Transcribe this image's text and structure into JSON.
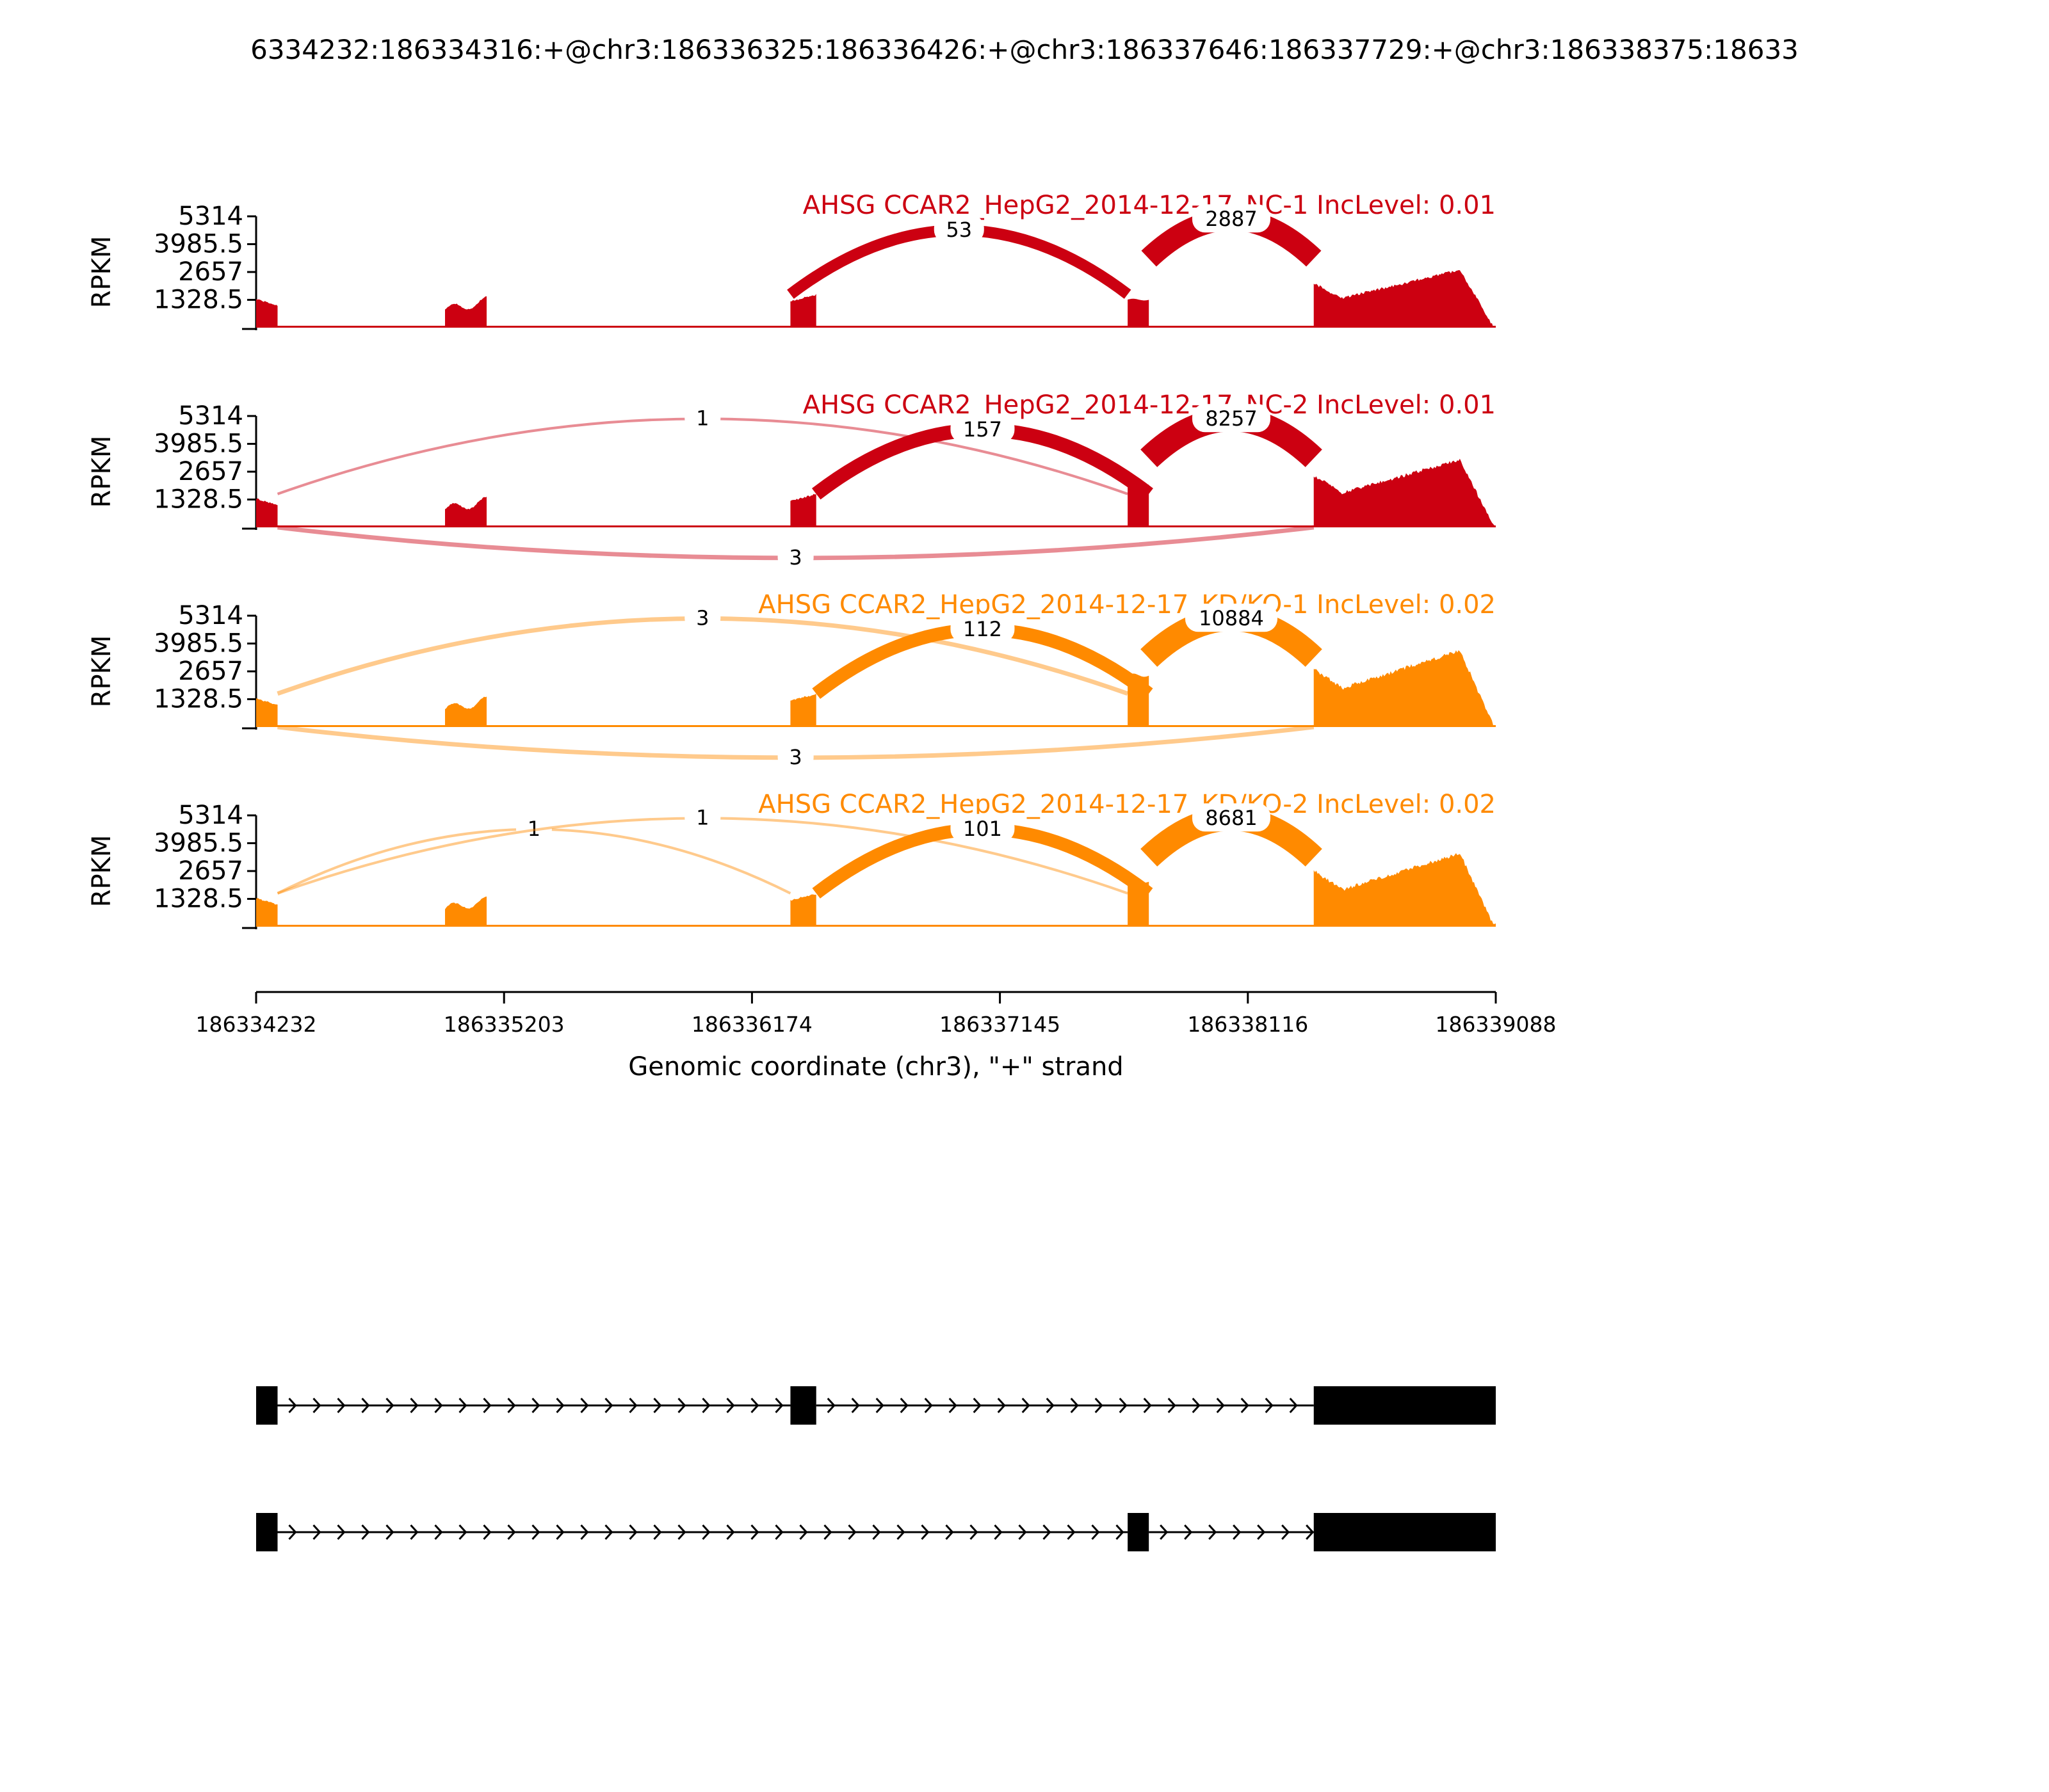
{
  "figure_title": "6334232:186334316:+@chr3:186336325:186336426:+@chr3:186337646:186337729:+@chr3:186338375:18633",
  "colors": {
    "nc": "#cc0011",
    "kd": "#ff8a00",
    "axis": "#000000",
    "gene": "#000000"
  },
  "chart_data": [
    {
      "type": "area",
      "title": "AHSG CCAR2_HepG2_2014-12-17_NC-1 IncLevel: 0.01",
      "color": "#cc0011",
      "ylabel": "RPKM",
      "yticks": [
        1328.5,
        2657,
        3985.5,
        5314
      ],
      "ylim": [
        0,
        5314
      ],
      "junctions": [
        {
          "from": 186336325,
          "to": 186337646,
          "count": "53",
          "side": "above"
        },
        {
          "from": 186337729,
          "to": 186338375,
          "count": "2887",
          "side": "above"
        }
      ]
    },
    {
      "type": "area",
      "title": "AHSG CCAR2_HepG2_2014-12-17_NC-2 IncLevel: 0.01",
      "color": "#cc0011",
      "ylabel": "RPKM",
      "yticks": [
        1328.5,
        2657,
        3985.5,
        5314
      ],
      "ylim": [
        0,
        5314
      ],
      "junctions": [
        {
          "from": 186334316,
          "to": 186337646,
          "count": "1",
          "side": "above"
        },
        {
          "from": 186336426,
          "to": 186337729,
          "count": "157",
          "side": "above"
        },
        {
          "from": 186337729,
          "to": 186338375,
          "count": "8257",
          "side": "above"
        },
        {
          "from": 186334316,
          "to": 186338375,
          "count": "3",
          "side": "below"
        }
      ]
    },
    {
      "type": "area",
      "title": "AHSG CCAR2_HepG2_2014-12-17_KD/KO-1 IncLevel: 0.02",
      "color": "#ff8a00",
      "ylabel": "RPKM",
      "yticks": [
        1328.5,
        2657,
        3985.5,
        5314
      ],
      "ylim": [
        0,
        5314
      ],
      "junctions": [
        {
          "from": 186334316,
          "to": 186337646,
          "count": "3",
          "side": "above"
        },
        {
          "from": 186336426,
          "to": 186337729,
          "count": "112",
          "side": "above"
        },
        {
          "from": 186337729,
          "to": 186338375,
          "count": "10884",
          "side": "above"
        },
        {
          "from": 186334316,
          "to": 186338375,
          "count": "3",
          "side": "below"
        }
      ]
    },
    {
      "type": "area",
      "title": "AHSG CCAR2_HepG2_2014-12-17_KD/KO-2 IncLevel: 0.02",
      "color": "#ff8a00",
      "ylabel": "RPKM",
      "yticks": [
        1328.5,
        2657,
        3985.5,
        5314
      ],
      "ylim": [
        0,
        5314
      ],
      "junctions": [
        {
          "from": 186334316,
          "to": 186336325,
          "count": "1",
          "side": "above"
        },
        {
          "from": 186334316,
          "to": 186337646,
          "count": "1",
          "side": "above"
        },
        {
          "from": 186336426,
          "to": 186337729,
          "count": "101",
          "side": "above"
        },
        {
          "from": 186337729,
          "to": 186338375,
          "count": "8681",
          "side": "above"
        }
      ]
    }
  ],
  "x_axis": {
    "xlabel": "Genomic coordinate (chr3), \"+\" strand",
    "xlim": [
      186334232,
      186339088
    ],
    "ticks": [
      "186334232",
      "186335203",
      "186336174",
      "186337145",
      "186338116",
      "186339088"
    ]
  },
  "exons": [
    {
      "start": 186334232,
      "end": 186334316
    },
    {
      "start": 186334972,
      "end": 186335135
    },
    {
      "start": 186336325,
      "end": 186336426
    },
    {
      "start": 186337646,
      "end": 186337729
    },
    {
      "start": 186338375,
      "end": 186339088
    }
  ],
  "isoforms": [
    {
      "exons": [
        [
          186334232,
          186334316
        ],
        [
          186336325,
          186336426
        ],
        [
          186338375,
          186339088
        ]
      ]
    },
    {
      "exons": [
        [
          186334232,
          186334316
        ],
        [
          186337646,
          186337729
        ],
        [
          186338375,
          186339088
        ]
      ]
    }
  ]
}
